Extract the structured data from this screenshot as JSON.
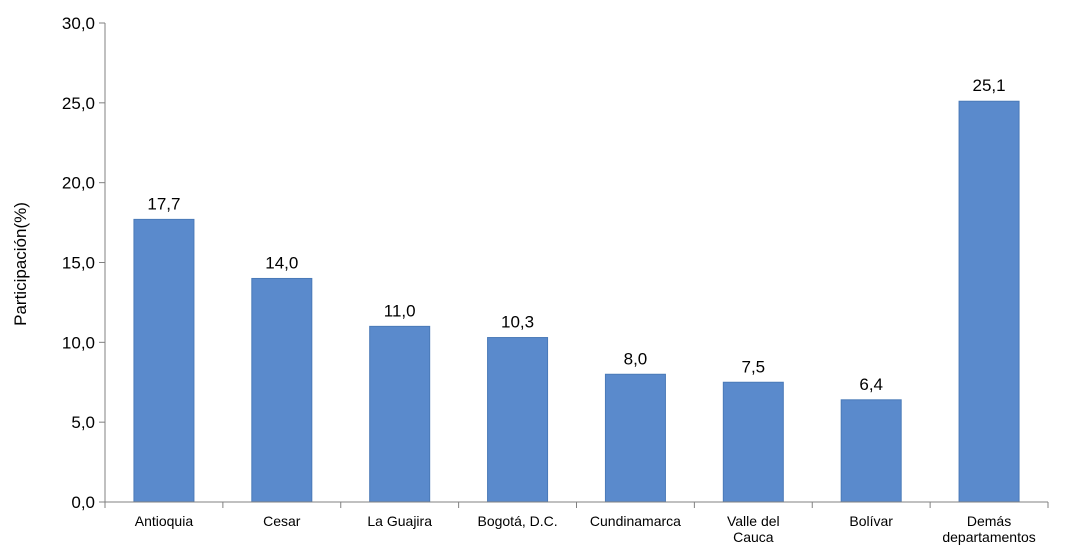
{
  "chart_data": {
    "type": "bar",
    "title": "",
    "xlabel": "",
    "ylabel": "Participación(%)",
    "ylim": [
      0,
      30
    ],
    "yticks": [
      "0,0",
      "5,0",
      "10,0",
      "15,0",
      "20,0",
      "25,0",
      "30,0"
    ],
    "ytick_values": [
      0,
      5,
      10,
      15,
      20,
      25,
      30
    ],
    "categories": [
      [
        "Antioquia"
      ],
      [
        "Cesar"
      ],
      [
        "La Guajira"
      ],
      [
        "Bogotá, D.C."
      ],
      [
        "Cundinamarca"
      ],
      [
        "Valle del",
        "Cauca"
      ],
      [
        "Bolívar"
      ],
      [
        "Demás",
        "departamentos"
      ]
    ],
    "values": [
      17.7,
      14.0,
      11.0,
      10.3,
      8.0,
      7.5,
      6.4,
      25.1
    ],
    "value_labels": [
      "17,7",
      "14,0",
      "11,0",
      "10,3",
      "8,0",
      "7,5",
      "6,4",
      "25,1"
    ],
    "bar_color": "#5a8acc",
    "bar_edge_color": "#4a7ab8",
    "grid": false,
    "legend": "none"
  }
}
